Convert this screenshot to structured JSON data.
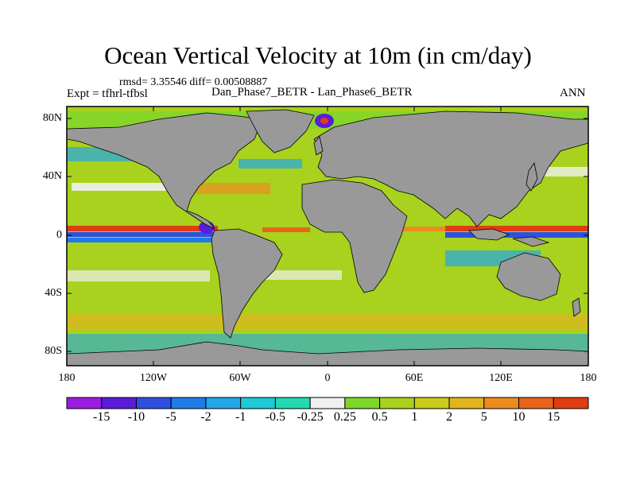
{
  "header": {
    "title": "Ocean Vertical Velocity at 10m (in cm/day)",
    "stats": "rmsd= 3.35546 diff= 0.00508887",
    "expt": "Expt = tfhrl-tfbsl",
    "cases": "Dan_Phase7_BETR - Lan_Phase6_BETR",
    "season": "ANN"
  },
  "axes": {
    "lat_labels": [
      "80N",
      "40N",
      "0",
      "40S",
      "80S"
    ],
    "lon_labels": [
      "180",
      "120W",
      "60W",
      "0",
      "60E",
      "120E",
      "180"
    ]
  },
  "colorbar": {
    "colors": [
      "#9b1de0",
      "#5a1cd8",
      "#2f4fe0",
      "#1f7ce6",
      "#22a6e6",
      "#1ec9d8",
      "#22d9b0",
      "#f0f0f0",
      "#7ed62a",
      "#a8d21e",
      "#c8cc1a",
      "#e0b41e",
      "#ec8c1e",
      "#e8641a",
      "#e03c12"
    ],
    "labels": [
      "-15",
      "-10",
      "-5",
      "-2",
      "-1",
      "-0.5",
      "-0.25",
      "0.25",
      "0.5",
      "1",
      "2",
      "5",
      "10",
      "15"
    ]
  },
  "colors": {
    "land": "#999999",
    "ocean_base": "#a8d21e"
  }
}
